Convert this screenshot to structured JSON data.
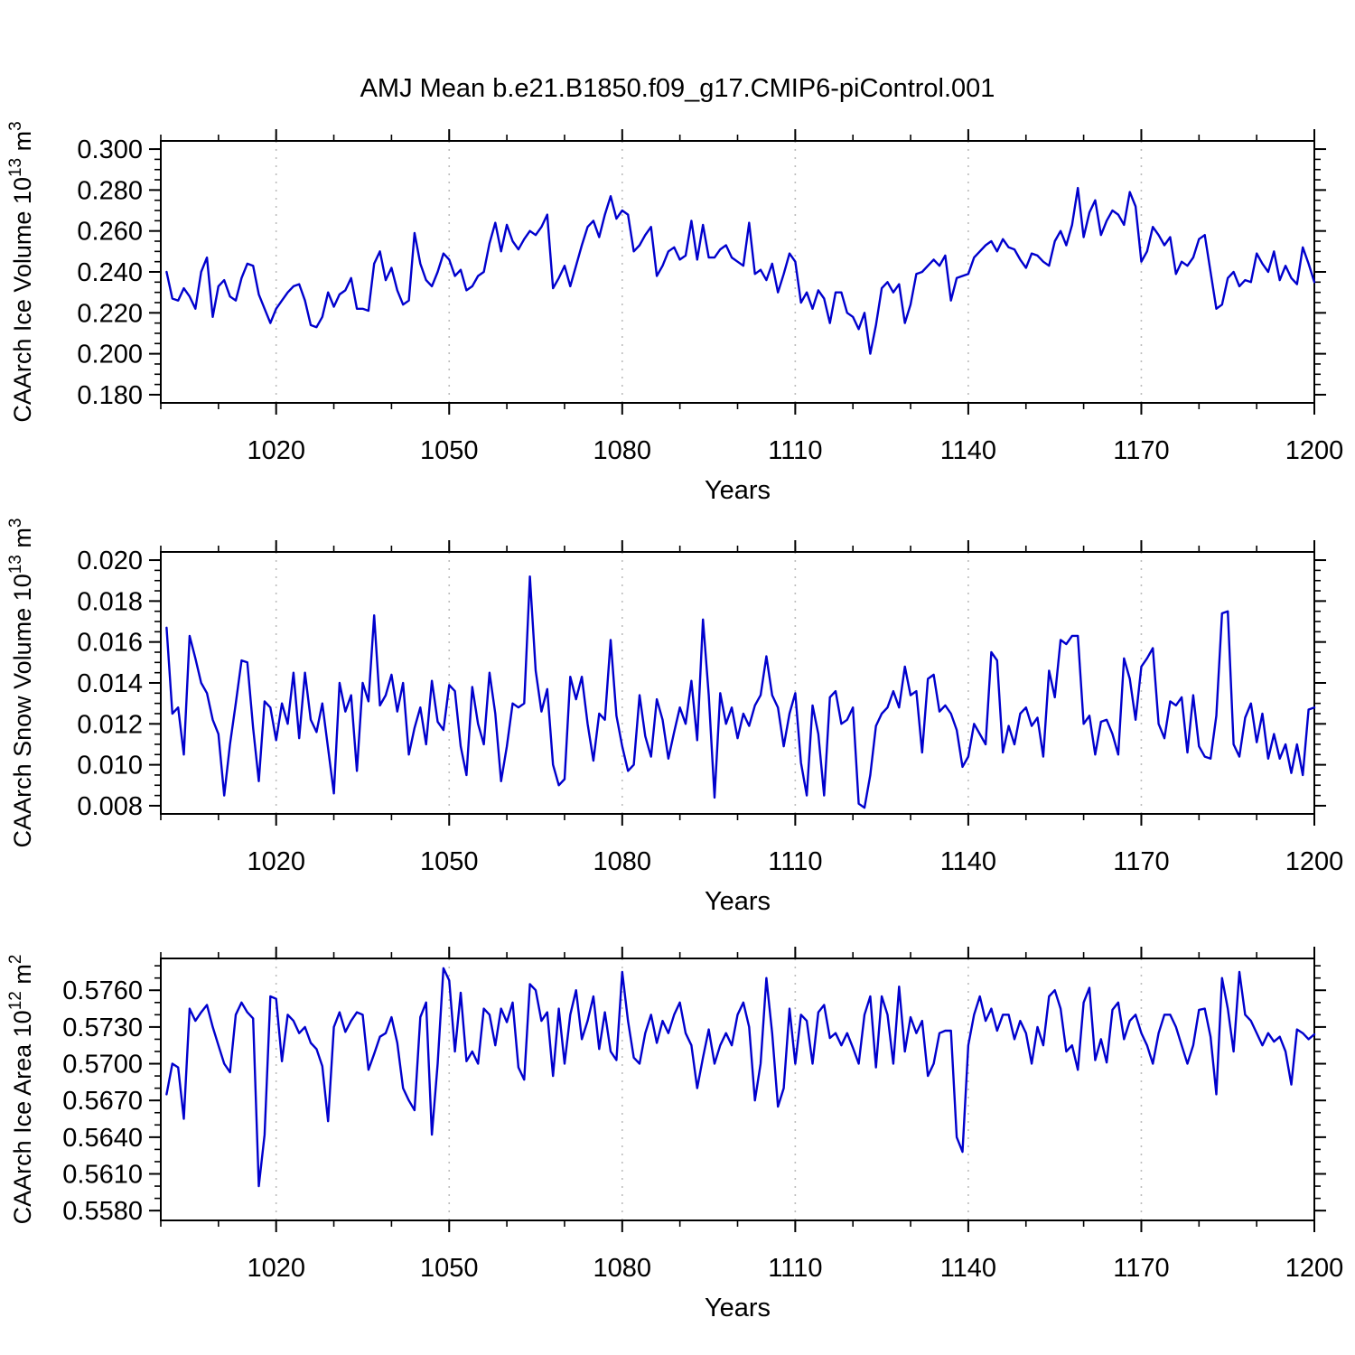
{
  "title": "AMJ Mean b.e21.B1850.f09_g17.CMIP6-piControl.001",
  "line_color": "#0000cd",
  "grid_color": "#bcbcbc",
  "axis_color": "#000000",
  "chart_data": [
    {
      "type": "line",
      "ylabel": "CAArch Ice Volume 10^13 m^3",
      "ylabel_parts": [
        {
          "t": "CAArch Ice Volume 10"
        },
        {
          "t": "13",
          "sup": true
        },
        {
          "t": " m"
        },
        {
          "t": "3",
          "sup": true
        }
      ],
      "xlabel": "Years",
      "x_start": 1001,
      "x_step": 1,
      "xlim": [
        1000,
        1200
      ],
      "xticks": [
        1020,
        1050,
        1080,
        1110,
        1140,
        1170,
        1200
      ],
      "x_minor_step": 10,
      "ylim": [
        0.176,
        0.304
      ],
      "yticks": [
        0.18,
        0.2,
        0.22,
        0.24,
        0.26,
        0.28,
        0.3
      ],
      "y_minor_step": 0.005,
      "y_decimals": 3,
      "grid": "vertical-dashed",
      "values": [
        0.24,
        0.227,
        0.226,
        0.232,
        0.228,
        0.222,
        0.24,
        0.247,
        0.218,
        0.233,
        0.236,
        0.228,
        0.226,
        0.237,
        0.244,
        0.243,
        0.229,
        0.222,
        0.215,
        0.222,
        0.226,
        0.23,
        0.233,
        0.234,
        0.226,
        0.214,
        0.213,
        0.218,
        0.23,
        0.223,
        0.229,
        0.231,
        0.237,
        0.222,
        0.222,
        0.221,
        0.244,
        0.25,
        0.236,
        0.242,
        0.231,
        0.224,
        0.226,
        0.259,
        0.244,
        0.236,
        0.233,
        0.24,
        0.249,
        0.246,
        0.238,
        0.241,
        0.231,
        0.233,
        0.238,
        0.24,
        0.254,
        0.264,
        0.25,
        0.263,
        0.255,
        0.251,
        0.256,
        0.26,
        0.258,
        0.262,
        0.268,
        0.232,
        0.237,
        0.243,
        0.233,
        0.243,
        0.253,
        0.262,
        0.265,
        0.257,
        0.268,
        0.277,
        0.266,
        0.27,
        0.268,
        0.25,
        0.253,
        0.258,
        0.262,
        0.238,
        0.243,
        0.25,
        0.252,
        0.246,
        0.248,
        0.265,
        0.246,
        0.263,
        0.247,
        0.247,
        0.251,
        0.253,
        0.247,
        0.245,
        0.243,
        0.264,
        0.239,
        0.241,
        0.236,
        0.244,
        0.23,
        0.239,
        0.249,
        0.245,
        0.225,
        0.23,
        0.222,
        0.231,
        0.227,
        0.215,
        0.23,
        0.23,
        0.22,
        0.218,
        0.212,
        0.22,
        0.2,
        0.214,
        0.232,
        0.235,
        0.23,
        0.234,
        0.215,
        0.224,
        0.239,
        0.24,
        0.243,
        0.246,
        0.243,
        0.248,
        0.226,
        0.237,
        0.238,
        0.239,
        0.247,
        0.25,
        0.253,
        0.255,
        0.25,
        0.256,
        0.252,
        0.251,
        0.246,
        0.242,
        0.249,
        0.248,
        0.245,
        0.243,
        0.255,
        0.26,
        0.253,
        0.263,
        0.281,
        0.257,
        0.269,
        0.275,
        0.258,
        0.265,
        0.27,
        0.268,
        0.263,
        0.279,
        0.272,
        0.245,
        0.25,
        0.262,
        0.258,
        0.253,
        0.257,
        0.239,
        0.245,
        0.243,
        0.247,
        0.256,
        0.258,
        0.24,
        0.222,
        0.224,
        0.237,
        0.24,
        0.233,
        0.236,
        0.235,
        0.249,
        0.244,
        0.24,
        0.25,
        0.236,
        0.243,
        0.237,
        0.234,
        0.252,
        0.244,
        0.235
      ]
    },
    {
      "type": "line",
      "ylabel": "CAArch Snow Volume 10^13 m^3",
      "ylabel_parts": [
        {
          "t": "CAArch Snow Volume 10"
        },
        {
          "t": "13",
          "sup": true
        },
        {
          "t": " m"
        },
        {
          "t": "3",
          "sup": true
        }
      ],
      "xlabel": "Years",
      "x_start": 1001,
      "x_step": 1,
      "xlim": [
        1000,
        1200
      ],
      "xticks": [
        1020,
        1050,
        1080,
        1110,
        1140,
        1170,
        1200
      ],
      "x_minor_step": 10,
      "ylim": [
        0.0076,
        0.0204
      ],
      "yticks": [
        0.008,
        0.01,
        0.012,
        0.014,
        0.016,
        0.018,
        0.02
      ],
      "y_minor_step": 0.0005,
      "y_decimals": 3,
      "grid": "vertical-dashed",
      "values": [
        0.0167,
        0.0125,
        0.0128,
        0.0105,
        0.0163,
        0.0152,
        0.014,
        0.0135,
        0.0122,
        0.0115,
        0.0085,
        0.011,
        0.013,
        0.0151,
        0.015,
        0.0118,
        0.0092,
        0.0131,
        0.0128,
        0.0112,
        0.013,
        0.012,
        0.0145,
        0.0113,
        0.0145,
        0.0122,
        0.0116,
        0.013,
        0.0108,
        0.0086,
        0.014,
        0.0126,
        0.0134,
        0.0097,
        0.014,
        0.0131,
        0.0173,
        0.0129,
        0.0134,
        0.0144,
        0.0126,
        0.014,
        0.0105,
        0.0118,
        0.0128,
        0.011,
        0.0141,
        0.0121,
        0.0117,
        0.0139,
        0.0136,
        0.0109,
        0.0095,
        0.0138,
        0.012,
        0.011,
        0.0145,
        0.0125,
        0.0092,
        0.0109,
        0.013,
        0.0128,
        0.013,
        0.0192,
        0.0146,
        0.0126,
        0.0137,
        0.01,
        0.009,
        0.0093,
        0.0143,
        0.0132,
        0.0143,
        0.012,
        0.0102,
        0.0125,
        0.0122,
        0.0161,
        0.0124,
        0.0109,
        0.0097,
        0.01,
        0.0134,
        0.0114,
        0.0104,
        0.0132,
        0.0122,
        0.0103,
        0.0116,
        0.0128,
        0.012,
        0.0141,
        0.0112,
        0.0171,
        0.0134,
        0.0084,
        0.0135,
        0.012,
        0.0128,
        0.0113,
        0.0125,
        0.0119,
        0.0129,
        0.0134,
        0.0153,
        0.0134,
        0.0128,
        0.0109,
        0.0125,
        0.0135,
        0.0101,
        0.0085,
        0.0129,
        0.0115,
        0.0085,
        0.0133,
        0.0136,
        0.012,
        0.0122,
        0.0128,
        0.0081,
        0.0079,
        0.0095,
        0.0119,
        0.0125,
        0.0128,
        0.0136,
        0.0128,
        0.0148,
        0.0134,
        0.0136,
        0.0106,
        0.0142,
        0.0144,
        0.0126,
        0.0129,
        0.0125,
        0.0117,
        0.0099,
        0.0104,
        0.012,
        0.0115,
        0.011,
        0.0155,
        0.0151,
        0.0106,
        0.0119,
        0.011,
        0.0125,
        0.0128,
        0.0119,
        0.0123,
        0.0104,
        0.0146,
        0.0133,
        0.0161,
        0.0159,
        0.0163,
        0.0163,
        0.012,
        0.0124,
        0.0105,
        0.0121,
        0.0122,
        0.0115,
        0.0105,
        0.0152,
        0.0142,
        0.0122,
        0.0148,
        0.0152,
        0.0157,
        0.012,
        0.0113,
        0.0131,
        0.0129,
        0.0133,
        0.0106,
        0.0134,
        0.0109,
        0.0104,
        0.0103,
        0.0124,
        0.0174,
        0.0175,
        0.011,
        0.0104,
        0.0123,
        0.013,
        0.0111,
        0.0125,
        0.0103,
        0.0115,
        0.0103,
        0.011,
        0.0096,
        0.011,
        0.0095,
        0.0127,
        0.0128
      ]
    },
    {
      "type": "line",
      "ylabel": "CAArch Ice Area 10^12 m^2",
      "ylabel_parts": [
        {
          "t": "CAArch Ice Area 10"
        },
        {
          "t": "12",
          "sup": true
        },
        {
          "t": " m"
        },
        {
          "t": "2",
          "sup": true
        }
      ],
      "xlabel": "Years",
      "x_start": 1001,
      "x_step": 1,
      "xlim": [
        1000,
        1200
      ],
      "xticks": [
        1020,
        1050,
        1080,
        1110,
        1140,
        1170,
        1200
      ],
      "x_minor_step": 10,
      "ylim": [
        0.5572,
        0.5786
      ],
      "yticks": [
        0.558,
        0.561,
        0.564,
        0.567,
        0.57,
        0.573,
        0.576
      ],
      "y_minor_step": 0.001,
      "y_decimals": 4,
      "grid": "vertical-dashed",
      "values": [
        0.5675,
        0.57,
        0.5697,
        0.5655,
        0.5745,
        0.5735,
        0.5742,
        0.5748,
        0.573,
        0.5715,
        0.57,
        0.5693,
        0.574,
        0.575,
        0.5742,
        0.5737,
        0.56,
        0.5642,
        0.5755,
        0.5753,
        0.5702,
        0.574,
        0.5735,
        0.5725,
        0.573,
        0.5717,
        0.5712,
        0.5698,
        0.5653,
        0.573,
        0.5742,
        0.5726,
        0.5735,
        0.5742,
        0.574,
        0.5695,
        0.5708,
        0.5722,
        0.5725,
        0.5738,
        0.5717,
        0.568,
        0.567,
        0.5662,
        0.5738,
        0.575,
        0.5642,
        0.57,
        0.5778,
        0.5768,
        0.571,
        0.5758,
        0.5702,
        0.571,
        0.57,
        0.5745,
        0.574,
        0.5715,
        0.5745,
        0.5734,
        0.575,
        0.5697,
        0.5687,
        0.5765,
        0.576,
        0.5735,
        0.5742,
        0.569,
        0.5745,
        0.57,
        0.574,
        0.576,
        0.572,
        0.5735,
        0.5755,
        0.5712,
        0.5742,
        0.571,
        0.5703,
        0.5775,
        0.5735,
        0.5705,
        0.57,
        0.5725,
        0.574,
        0.5717,
        0.5735,
        0.5725,
        0.574,
        0.575,
        0.5725,
        0.5715,
        0.568,
        0.5705,
        0.5728,
        0.57,
        0.5715,
        0.5725,
        0.5715,
        0.574,
        0.575,
        0.573,
        0.567,
        0.57,
        0.577,
        0.5725,
        0.5665,
        0.568,
        0.5745,
        0.57,
        0.574,
        0.5735,
        0.57,
        0.5742,
        0.5748,
        0.5721,
        0.5725,
        0.5715,
        0.5725,
        0.5713,
        0.57,
        0.574,
        0.5755,
        0.5697,
        0.5755,
        0.574,
        0.57,
        0.5763,
        0.571,
        0.5738,
        0.5725,
        0.5735,
        0.569,
        0.57,
        0.5725,
        0.5727,
        0.5727,
        0.564,
        0.5628,
        0.5715,
        0.574,
        0.5755,
        0.5735,
        0.5745,
        0.5727,
        0.574,
        0.574,
        0.572,
        0.5735,
        0.5725,
        0.57,
        0.573,
        0.5715,
        0.5755,
        0.576,
        0.5745,
        0.571,
        0.5715,
        0.5695,
        0.575,
        0.5762,
        0.5703,
        0.572,
        0.5701,
        0.5744,
        0.575,
        0.572,
        0.5735,
        0.574,
        0.5725,
        0.5715,
        0.57,
        0.5725,
        0.574,
        0.574,
        0.573,
        0.5715,
        0.57,
        0.5715,
        0.5744,
        0.5745,
        0.5722,
        0.5675,
        0.577,
        0.5745,
        0.571,
        0.5775,
        0.574,
        0.5735,
        0.5725,
        0.5715,
        0.5725,
        0.5718,
        0.5722,
        0.571,
        0.5683,
        0.5728,
        0.5725,
        0.572,
        0.5724
      ]
    }
  ]
}
